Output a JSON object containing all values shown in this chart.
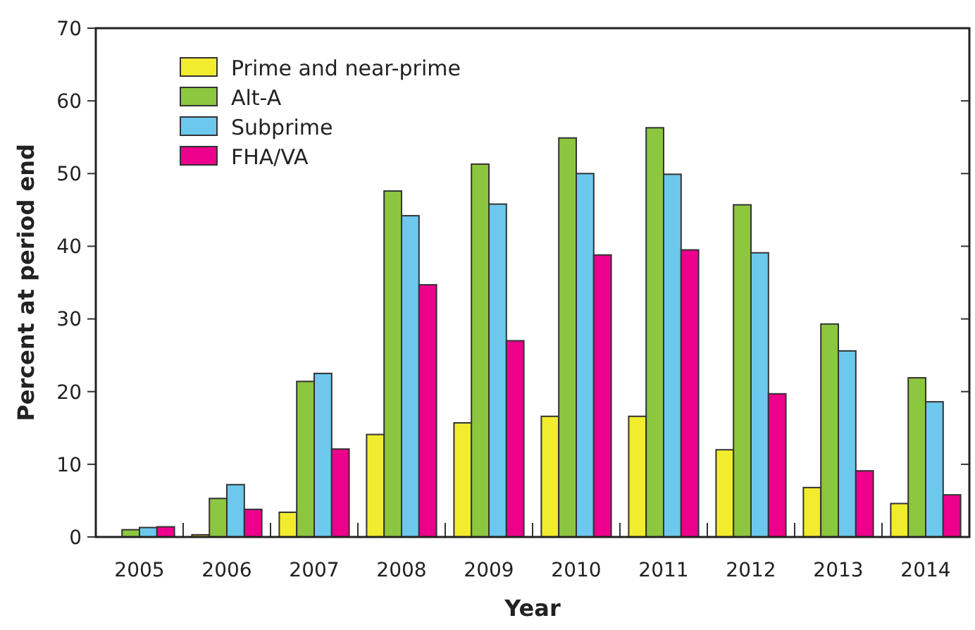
{
  "chart_data": {
    "type": "bar",
    "xlabel": "Year",
    "ylabel": "Percent at period end",
    "categories": [
      "2005",
      "2006",
      "2007",
      "2008",
      "2009",
      "2010",
      "2011",
      "2012",
      "2013",
      "2014"
    ],
    "series": [
      {
        "name": "Prime and near-prime",
        "color": "#f2ec2e",
        "values": [
          0,
          0.3,
          3.4,
          14.1,
          15.7,
          16.6,
          16.6,
          12.0,
          6.8,
          4.6
        ]
      },
      {
        "name": "Alt-A",
        "color": "#8dc63f",
        "values": [
          1.0,
          5.3,
          21.4,
          47.6,
          51.3,
          54.9,
          56.3,
          45.7,
          29.3,
          21.9
        ]
      },
      {
        "name": "Subprime",
        "color": "#6dc8ee",
        "values": [
          1.3,
          7.2,
          22.5,
          44.2,
          45.8,
          50.0,
          49.9,
          39.1,
          25.6,
          18.6
        ]
      },
      {
        "name": "FHA/VA",
        "color": "#ec008c",
        "values": [
          1.4,
          3.8,
          12.1,
          34.7,
          27.0,
          38.8,
          39.5,
          19.7,
          9.1,
          5.8
        ]
      }
    ],
    "ylim": [
      0,
      70
    ],
    "yticks": [
      0,
      10,
      20,
      30,
      40,
      50,
      60,
      70
    ],
    "grid": false,
    "legend": "top left"
  }
}
